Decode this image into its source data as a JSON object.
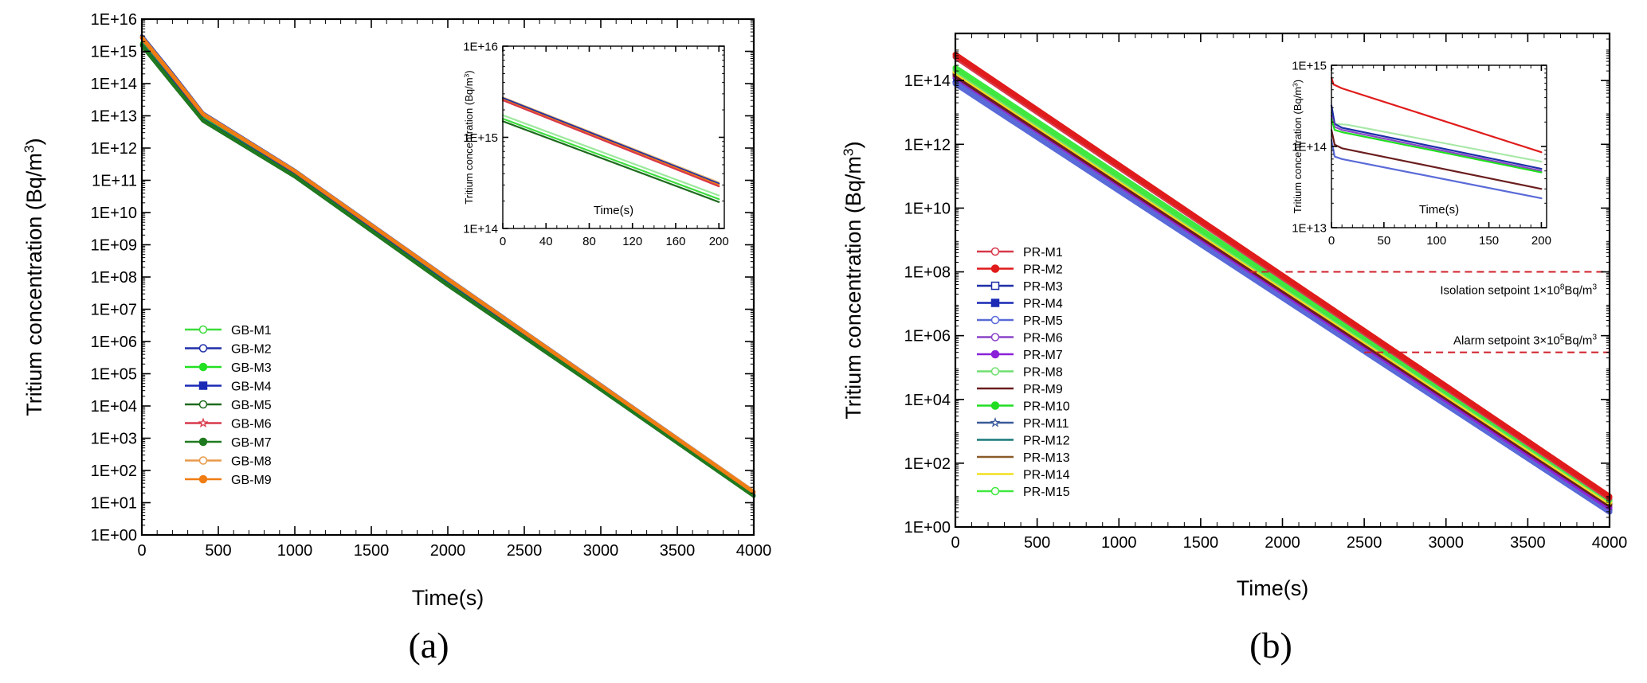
{
  "chart_data": [
    {
      "type": "line",
      "panel_label": "(a)",
      "title": "",
      "xlabel": "Time(s)",
      "ylabel_main": "Tritium concentration (Bq/m",
      "ylabel_sup": "3",
      "ylabel_end": ")",
      "ylog": true,
      "xlim": [
        0,
        4000
      ],
      "ylim": [
        1,
        1e+16
      ],
      "x_ticks": [
        "0",
        "500",
        "1000",
        "1500",
        "2000",
        "2500",
        "3000",
        "3500",
        "4000"
      ],
      "y_ticks": [
        "1E+00",
        "1E+01",
        "1E+02",
        "1E+03",
        "1E+04",
        "1E+05",
        "1E+06",
        "1E+07",
        "1E+08",
        "1E+09",
        "1E+10",
        "1E+11",
        "1E+12",
        "1E+13",
        "1E+14",
        "1E+15",
        "1E+16"
      ],
      "legend_position": "lower-left",
      "series": [
        {
          "name": "GB-M1",
          "color": "#3ddc3d",
          "marker": "open-circle",
          "x": [
            0,
            200,
            400,
            1000,
            2000,
            3000,
            4000
          ],
          "y": [
            1700000000000000.0,
            120000000000000.0,
            8000000000000.0,
            150000000000.0,
            60000000.0,
            35000.0,
            17
          ]
        },
        {
          "name": "GB-M2",
          "color": "#1f2fa8",
          "marker": "open-circle",
          "x": [
            0,
            200,
            400,
            1000,
            2000,
            3000,
            4000
          ],
          "y": [
            3000000000000000.0,
            200000000000000.0,
            12000000000000.0,
            200000000000.0,
            90000000.0,
            45000.0,
            22
          ]
        },
        {
          "name": "GB-M3",
          "color": "#22e022",
          "marker": "filled-circle",
          "x": [
            0,
            200,
            400,
            1000,
            2000,
            3000,
            4000
          ],
          "y": [
            1800000000000000.0,
            130000000000000.0,
            8500000000000.0,
            155000000000.0,
            65000000.0,
            36000.0,
            18
          ]
        },
        {
          "name": "GB-M4",
          "color": "#1a2ab5",
          "marker": "filled-square",
          "x": [
            0,
            200,
            400,
            1000,
            2000,
            3000,
            4000
          ],
          "y": [
            1600000000000000.0,
            115000000000000.0,
            7500000000000.0,
            145000000000.0,
            60000000.0,
            34000.0,
            17
          ]
        },
        {
          "name": "GB-M5",
          "color": "#1e6b1e",
          "marker": "open-circle",
          "x": [
            0,
            200,
            400,
            1000,
            2000,
            3000,
            4000
          ],
          "y": [
            1500000000000000.0,
            100000000000000.0,
            7000000000000.0,
            130000000000.0,
            55000000.0,
            32000.0,
            16
          ]
        },
        {
          "name": "GB-M6",
          "color": "#d8394a",
          "marker": "open-star",
          "x": [
            0,
            200,
            400,
            1000,
            2000,
            3000,
            4000
          ],
          "y": [
            2600000000000000.0,
            175000000000000.0,
            11000000000000.0,
            190000000000.0,
            85000000.0,
            43000.0,
            21
          ]
        },
        {
          "name": "GB-M7",
          "color": "#1f7a1f",
          "marker": "filled-circle",
          "x": [
            0,
            200,
            400,
            1000,
            2000,
            3000,
            4000
          ],
          "y": [
            1550000000000000.0,
            105000000000000.0,
            7200000000000.0,
            135000000000.0,
            57000000.0,
            33000.0,
            16
          ]
        },
        {
          "name": "GB-M8",
          "color": "#e89a4a",
          "marker": "open-circle",
          "x": [
            0,
            200,
            400,
            1000,
            2000,
            3000,
            4000
          ],
          "y": [
            2800000000000000.0,
            185000000000000.0,
            11500000000000.0,
            195000000000.0,
            88000000.0,
            44000.0,
            22
          ]
        },
        {
          "name": "GB-M9",
          "color": "#f07d14",
          "marker": "filled-circle",
          "x": [
            0,
            200,
            400,
            1000,
            2000,
            3000,
            4000
          ],
          "y": [
            2700000000000000.0,
            180000000000000.0,
            11200000000000.0,
            192000000000.0,
            86000000.0,
            43000.0,
            21
          ]
        }
      ],
      "inset": {
        "xlabel": "Time(s)",
        "ylabel_main": "Tritium concentration (Bq/m",
        "ylabel_sup": "3",
        "ylabel_end": ")",
        "ylog": true,
        "xlim": [
          0,
          205
        ],
        "ylim": [
          100000000000000.0,
          1e+16
        ],
        "x_ticks": [
          "0",
          "40",
          "80",
          "120",
          "160",
          "200"
        ],
        "y_ticks": [
          "1E+14",
          "1E+15",
          "1E+16"
        ],
        "lines": [
          {
            "color": "#e8c080",
            "x": [
              0,
              200
            ],
            "y": [
              2750000000000000.0,
              320000000000000.0
            ]
          },
          {
            "color": "#1f2fa8",
            "x": [
              0,
              200
            ],
            "y": [
              2700000000000000.0,
              310000000000000.0
            ]
          },
          {
            "color": "#f07d14",
            "x": [
              0,
              200
            ],
            "y": [
              2600000000000000.0,
              300000000000000.0
            ]
          },
          {
            "color": "#d8394a",
            "x": [
              0,
              200
            ],
            "y": [
              2550000000000000.0,
              290000000000000.0
            ]
          },
          {
            "color": "#9ee89e",
            "x": [
              0,
              200
            ],
            "y": [
              1750000000000000.0,
              230000000000000.0
            ]
          },
          {
            "color": "#3ddc3d",
            "x": [
              0,
              200
            ],
            "y": [
              1600000000000000.0,
              210000000000000.0
            ]
          },
          {
            "color": "#1e6b1e",
            "x": [
              0,
              200
            ],
            "y": [
              1500000000000000.0,
              195000000000000.0
            ]
          }
        ]
      }
    },
    {
      "type": "line",
      "panel_label": "(b)",
      "title": "",
      "xlabel": "Time(s)",
      "ylabel_main": "Tritium concentration (Bq/m",
      "ylabel_sup": "3",
      "ylabel_end": ")",
      "ylog": true,
      "xlim": [
        0,
        4000
      ],
      "ylim": [
        1,
        3000000000000000.0
      ],
      "x_ticks": [
        "0",
        "500",
        "1000",
        "1500",
        "2000",
        "2500",
        "3000",
        "3500",
        "4000"
      ],
      "y_ticks": [
        "1E+00",
        "1E+02",
        "1E+04",
        "1E+06",
        "1E+08",
        "1E+10",
        "1E+12",
        "1E+14"
      ],
      "legend_position": "lower-left",
      "series": [
        {
          "name": "PR-M1",
          "color": "#d8394a",
          "marker": "open-circle",
          "x": [
            0,
            4000
          ],
          "y": [
            550000000000000.0,
            8
          ]
        },
        {
          "name": "PR-M2",
          "color": "#e01b1b",
          "marker": "filled-circle",
          "x": [
            0,
            4000
          ],
          "y": [
            650000000000000.0,
            9
          ]
        },
        {
          "name": "PR-M3",
          "color": "#1f2fa8",
          "marker": "open-square",
          "x": [
            0,
            4000
          ],
          "y": [
            120000000000000.0,
            3.5
          ]
        },
        {
          "name": "PR-M4",
          "color": "#1a2ab5",
          "marker": "filled-square",
          "x": [
            0,
            4000
          ],
          "y": [
            90000000000000.0,
            3
          ]
        },
        {
          "name": "PR-M5",
          "color": "#5a6ad8",
          "marker": "open-circle",
          "x": [
            0,
            4000
          ],
          "y": [
            80000000000000.0,
            3
          ]
        },
        {
          "name": "PR-M6",
          "color": "#8a44c8",
          "marker": "open-circle",
          "x": [
            0,
            4000
          ],
          "y": [
            130000000000000.0,
            4
          ]
        },
        {
          "name": "PR-M7",
          "color": "#8a22d8",
          "marker": "filled-circle",
          "x": [
            0,
            4000
          ],
          "y": [
            140000000000000.0,
            4.2
          ]
        },
        {
          "name": "PR-M8",
          "color": "#70e070",
          "marker": "open-circle",
          "x": [
            0,
            4000
          ],
          "y": [
            220000000000000.0,
            7
          ]
        },
        {
          "name": "PR-M9",
          "color": "#6b1e1e",
          "marker": "none",
          "x": [
            0,
            4000
          ],
          "y": [
            150000000000000.0,
            5
          ]
        },
        {
          "name": "PR-M10",
          "color": "#22dd22",
          "marker": "filled-circle",
          "x": [
            0,
            4000
          ],
          "y": [
            200000000000000.0,
            6.5
          ]
        },
        {
          "name": "PR-M11",
          "color": "#3a5a9a",
          "marker": "open-star",
          "x": [
            0,
            4000
          ],
          "y": [
            160000000000000.0,
            5
          ]
        },
        {
          "name": "PR-M12",
          "color": "#1a7a7a",
          "marker": "none",
          "x": [
            0,
            4000
          ],
          "y": [
            170000000000000.0,
            5.5
          ]
        },
        {
          "name": "PR-M13",
          "color": "#8a5a2a",
          "marker": "none",
          "x": [
            0,
            4000
          ],
          "y": [
            180000000000000.0,
            5.8
          ]
        },
        {
          "name": "PR-M14",
          "color": "#f0e020",
          "marker": "none",
          "x": [
            0,
            4000
          ],
          "y": [
            190000000000000.0,
            6
          ]
        },
        {
          "name": "PR-M15",
          "color": "#40e840",
          "marker": "open-circle",
          "x": [
            0,
            4000
          ],
          "y": [
            250000000000000.0,
            7.5
          ]
        }
      ],
      "annotations": [
        {
          "text_main": "Isolation setpoint  1×10",
          "text_sup": "8",
          "text_end": "Bq/m",
          "text_sup2": "3",
          "y": 100000000.0,
          "x_start": 1800
        },
        {
          "text_main": "Alarm setpoint 3×10",
          "text_sup": "5",
          "text_end": "Bq/m",
          "text_sup2": "3",
          "y": 300000.0,
          "x_start": 2500
        }
      ],
      "inset": {
        "xlabel": "Time(s)",
        "ylabel_main": "Tritium concentration (Bq/m",
        "ylabel_sup": "3",
        "ylabel_end": ")",
        "ylog": true,
        "xlim": [
          0,
          205
        ],
        "ylim": [
          10000000000000.0,
          1000000000000000.0
        ],
        "x_ticks": [
          "0",
          "50",
          "100",
          "150",
          "200"
        ],
        "y_ticks": [
          "1E+13",
          "1E+14",
          "1E+15"
        ],
        "lines": [
          {
            "color": "#e01b1b",
            "x": [
              0,
              2,
              10,
              200
            ],
            "y": [
              700000000000000.0,
              580000000000000.0,
              520000000000000.0,
              85000000000000.0
            ]
          },
          {
            "color": "#a8e8a8",
            "x": [
              0,
              3,
              15,
              200
            ],
            "y": [
              260000000000000.0,
              190000000000000.0,
              185000000000000.0,
              65000000000000.0
            ]
          },
          {
            "color": "#1f2fa8",
            "x": [
              0,
              3,
              10,
              200
            ],
            "y": [
              320000000000000.0,
              190000000000000.0,
              170000000000000.0,
              53000000000000.0
            ]
          },
          {
            "color": "#8a44c8",
            "x": [
              0,
              3,
              10,
              200
            ],
            "y": [
              240000000000000.0,
              175000000000000.0,
              160000000000000.0,
              50000000000000.0
            ]
          },
          {
            "color": "#22dd22",
            "x": [
              0,
              3,
              10,
              200
            ],
            "y": [
              220000000000000.0,
              160000000000000.0,
              150000000000000.0,
              48000000000000.0
            ]
          },
          {
            "color": "#6b1e1e",
            "x": [
              0,
              3,
              10,
              200
            ],
            "y": [
              160000000000000.0,
              105000000000000.0,
              95000000000000.0,
              30000000000000.0
            ]
          },
          {
            "color": "#5a6ad8",
            "x": [
              0,
              3,
              10,
              200
            ],
            "y": [
              120000000000000.0,
              75000000000000.0,
              70000000000000.0,
              23000000000000.0
            ]
          }
        ]
      }
    }
  ]
}
